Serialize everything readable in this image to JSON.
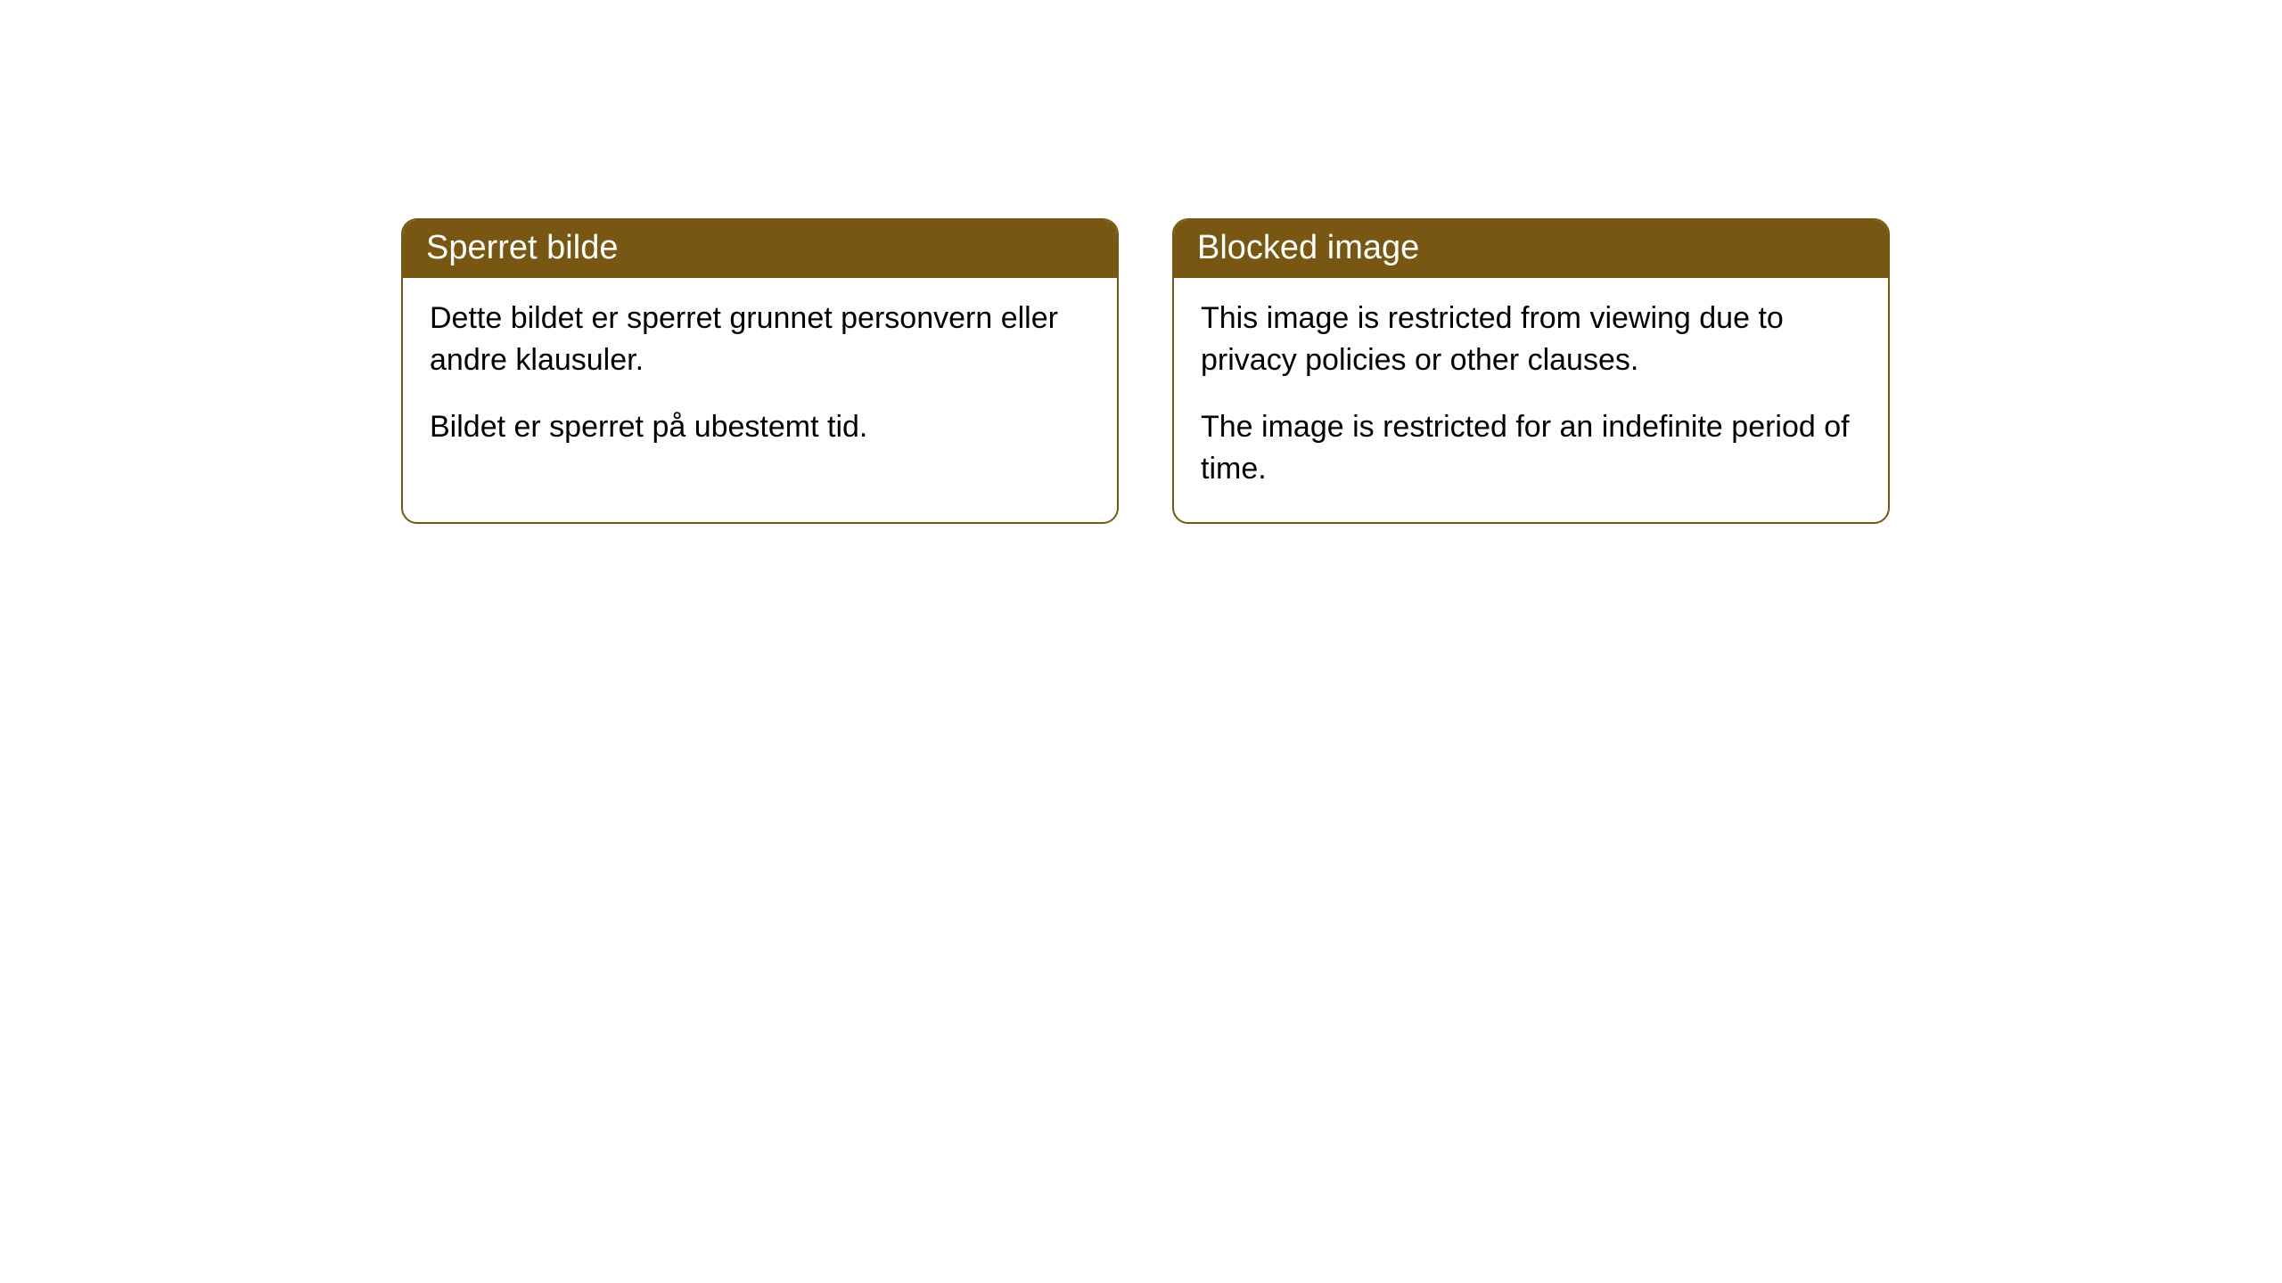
{
  "cards": [
    {
      "title": "Sperret bilde",
      "paragraph1": "Dette bildet er sperret grunnet personvern eller andre klausuler.",
      "paragraph2": "Bildet er sperret på ubestemt tid."
    },
    {
      "title": "Blocked image",
      "paragraph1": "This image is restricted from viewing due to privacy policies or other clauses.",
      "paragraph2": "The image is restricted for an indefinite period of time."
    }
  ],
  "styling": {
    "header_bg_color": "#775711",
    "header_text_color": "#ffffff",
    "body_text_color": "#000000",
    "card_border_color": "#775711",
    "card_bg_color": "#ffffff",
    "page_bg_color": "#ffffff",
    "border_radius": 18,
    "title_fontsize": 38,
    "body_fontsize": 34
  }
}
